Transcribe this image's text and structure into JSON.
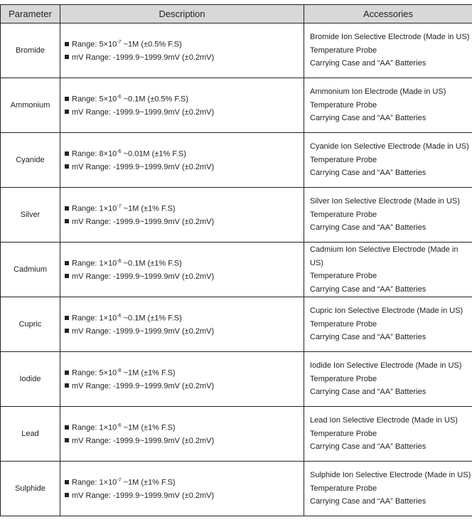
{
  "headers": {
    "parameter": "Parameter",
    "description": "Description",
    "accessories": "Accessories"
  },
  "rows": [
    {
      "parameter": "Bromide",
      "range_pre": "Range: 5×10",
      "range_exp": "-7",
      "range_post": " ~1M (±0.5% F.S)",
      "mv": "mV Range: -1999.9~1999.9mV (±0.2mV)",
      "acc": [
        "Bromide Ion Selective Electrode (Made in US)",
        "Temperature Probe",
        "Carrying Case and “AA” Batteries"
      ]
    },
    {
      "parameter": "Ammonium",
      "range_pre": "Range: 5×10",
      "range_exp": "-6",
      "range_post": " ~0.1M (±0.5% F.S)",
      "mv": "mV Range: -1999.9~1999.9mV (±0.2mV)",
      "acc": [
        "Ammonium Ion Electrode (Made in US)",
        "Temperature Probe",
        "Carrying Case and “AA” Batteries"
      ]
    },
    {
      "parameter": "Cyanide",
      "range_pre": "Range: 8×10",
      "range_exp": "-6",
      "range_post": " ~0.01M (±1% F.S)",
      "mv": "mV Range: -1999.9~1999.9mV (±0.2mV)",
      "acc": [
        "Cyanide Ion Selective Electrode (Made in US)",
        "Temperature Probe",
        "Carrying Case and “AA” Batteries"
      ]
    },
    {
      "parameter": "Silver",
      "range_pre": "Range: 1×10",
      "range_exp": "-7",
      "range_post": " ~1M (±1% F.S)",
      "mv": "mV Range: -1999.9~1999.9mV (±0.2mV)",
      "acc": [
        "Silver Ion Selective Electrode (Made in US)",
        "Temperature Probe",
        "Carrying Case and “AA” Batteries"
      ]
    },
    {
      "parameter": "Cadmium",
      "range_pre": "Range: 1×10",
      "range_exp": "-6",
      "range_post": " ~0.1M (±1% F.S)",
      "mv": "mV Range: -1999.9~1999.9mV (±0.2mV)",
      "acc": [
        "Cadmium Ion Selective Electrode (Made in US)",
        "Temperature Probe",
        "Carrying Case and “AA” Batteries"
      ]
    },
    {
      "parameter": "Cupric",
      "range_pre": "Range: 1×10",
      "range_exp": "-6",
      "range_post": " ~0.1M (±1% F.S)",
      "mv": "mV Range: -1999.9~1999.9mV (±0.2mV)",
      "acc": [
        "Cupric Ion Selective Electrode (Made in US)",
        "Temperature Probe",
        "Carrying Case and “AA” Batteries"
      ]
    },
    {
      "parameter": "Iodide",
      "range_pre": "Range: 5×10",
      "range_exp": "-8",
      "range_post": " ~1M (±1% F.S)",
      "mv": "mV Range: -1999.9~1999.9mV (±0.2mV)",
      "acc": [
        "Iodide Ion Selective Electrode (Made in US)",
        "Temperature Probe",
        "Carrying Case and “AA” Batteries"
      ]
    },
    {
      "parameter": "Lead",
      "range_pre": "Range: 1×10",
      "range_exp": "-6",
      "range_post": " ~1M (±1% F.S)",
      "mv": "mV Range: -1999.9~1999.9mV (±0.2mV)",
      "acc": [
        "Lead Ion Selective Electrode (Made in US)",
        "Temperature Probe",
        "Carrying Case and “AA” Batteries"
      ]
    },
    {
      "parameter": "Sulphide",
      "range_pre": "Range: 1×10",
      "range_exp": "-7",
      "range_post": " ~1M (±1% F.S)",
      "mv": "mV Range: -1999.9~1999.9mV (±0.2mV)",
      "acc": [
        "Sulphide Ion Selective Electrode (Made in US)",
        "Temperature Probe",
        "Carrying Case and “AA” Batteries"
      ]
    }
  ]
}
